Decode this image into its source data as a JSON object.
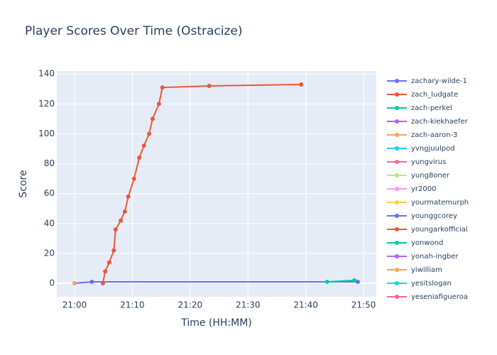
{
  "chart_data": {
    "type": "line",
    "title": "Player Scores Over Time (Ostracize)",
    "x_label": "Time (HH:MM)",
    "y_label": "Score",
    "xlim": [
      1256.93,
      1312.2
    ],
    "ylim": [
      -9,
      142
    ],
    "xticks": [
      {
        "value": 1260,
        "label": "21:00"
      },
      {
        "value": 1270,
        "label": "21:10"
      },
      {
        "value": 1280,
        "label": "21:20"
      },
      {
        "value": 1290,
        "label": "21:30"
      },
      {
        "value": 1300,
        "label": "21:40"
      },
      {
        "value": 1310,
        "label": "21:50"
      }
    ],
    "yticks": [
      0,
      20,
      40,
      60,
      80,
      100,
      120,
      140
    ],
    "grid": true,
    "series": [
      {
        "name": "zachary-wilde-1",
        "color": "#636efa",
        "x": [
          1260,
          1263,
          1309
        ],
        "values": [
          0,
          1,
          1
        ]
      },
      {
        "name": "zach_ludgate",
        "color": "#EF553B",
        "x": [
          1264.9,
          1265.3,
          1266,
          1266.8,
          1267.1,
          1268,
          1268.7,
          1269.3,
          1270.3,
          1271.2,
          1272,
          1272.9,
          1273.5,
          1274.6,
          1275.2,
          1283.3,
          1299.2
        ],
        "values": [
          0,
          8,
          14,
          22,
          36,
          42,
          48,
          58,
          70,
          84,
          92,
          100,
          110,
          120,
          131,
          132,
          133
        ]
      },
      {
        "name": "zach-perkel",
        "color": "#00cc96",
        "x": [
          1303.7,
          1308.4
        ],
        "values": [
          1,
          2
        ]
      },
      {
        "name": "zach-kiekhaefer",
        "color": "#ab63fa",
        "x": [],
        "values": []
      },
      {
        "name": "zach-aaron-3",
        "color": "#FFA15A",
        "x": [
          1260
        ],
        "values": [
          0
        ]
      },
      {
        "name": "yvngjuulpod",
        "color": "#19d3f3",
        "x": [],
        "values": []
      },
      {
        "name": "yungvirus",
        "color": "#FF6692",
        "x": [],
        "values": []
      },
      {
        "name": "yung8oner",
        "color": "#B6E880",
        "x": [],
        "values": []
      },
      {
        "name": "yr2000",
        "color": "#FF97FF",
        "x": [],
        "values": []
      },
      {
        "name": "yourmatemurph",
        "color": "#FECB52",
        "x": [],
        "values": []
      },
      {
        "name": "younggcorey",
        "color": "#636efa",
        "x": [],
        "values": []
      },
      {
        "name": "youngarkofficial",
        "color": "#EF553B",
        "x": [],
        "values": []
      },
      {
        "name": "yonwond",
        "color": "#00cc96",
        "x": [],
        "values": []
      },
      {
        "name": "yonah-ingber",
        "color": "#ab63fa",
        "x": [],
        "values": []
      },
      {
        "name": "yiwilliam",
        "color": "#FFA15A",
        "x": [],
        "values": []
      },
      {
        "name": "yesitslogan",
        "color": "#19d3f3",
        "x": [],
        "values": []
      },
      {
        "name": "yeseniafigueroa",
        "color": "#FF6692",
        "x": [],
        "values": []
      }
    ]
  }
}
